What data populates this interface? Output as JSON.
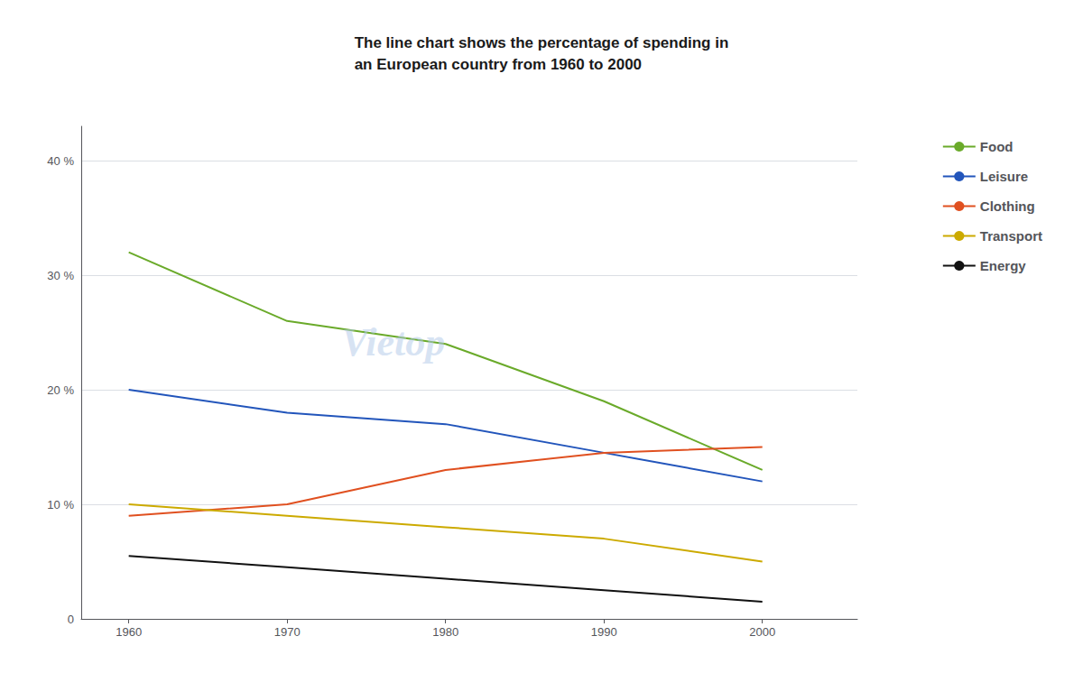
{
  "chart_data": {
    "type": "line",
    "title": "The line chart shows the percentage of spending in\nan European country from 1960 to 2000",
    "x": [
      1960,
      1970,
      1980,
      1990,
      2000
    ],
    "series": [
      {
        "name": "Food",
        "color": "#6aaa2a",
        "values": [
          32,
          26,
          24,
          19,
          13
        ]
      },
      {
        "name": "Leisure",
        "color": "#2255bb",
        "values": [
          20,
          18,
          17,
          14.5,
          12
        ]
      },
      {
        "name": "Clothing",
        "color": "#e05020",
        "values": [
          9,
          10,
          13,
          14.5,
          15
        ]
      },
      {
        "name": "Transport",
        "color": "#ccaa00",
        "values": [
          10,
          9,
          8,
          7,
          5
        ]
      },
      {
        "name": "Energy",
        "color": "#111111",
        "values": [
          5.5,
          4.5,
          3.5,
          2.5,
          1.5
        ]
      }
    ],
    "xlim": [
      1957,
      2006
    ],
    "xticks": [
      1960,
      1970,
      1980,
      1990,
      2000
    ],
    "ylim": [
      0,
      43
    ],
    "yticks": [
      0,
      {
        "value": 10,
        "label": "10 %"
      },
      {
        "value": 20,
        "label": "20 %"
      },
      {
        "value": 30,
        "label": "30 %"
      },
      {
        "value": 40,
        "label": "40 %"
      }
    ],
    "grid": true,
    "legend": "right",
    "annotations": [
      "Vietop"
    ]
  }
}
